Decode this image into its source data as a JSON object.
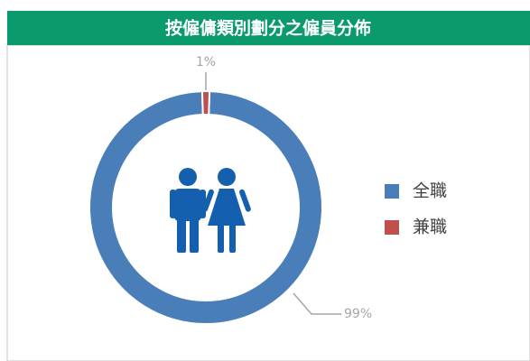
{
  "chart_data": {
    "type": "donut",
    "title": "按僱傭類別劃分之僱員分佈",
    "categories": [
      "全職",
      "兼職"
    ],
    "values": [
      99,
      1
    ],
    "value_labels": [
      "99%",
      "1%"
    ],
    "colors": [
      "#4a7eb8",
      "#c0504d"
    ],
    "legend": "right"
  }
}
